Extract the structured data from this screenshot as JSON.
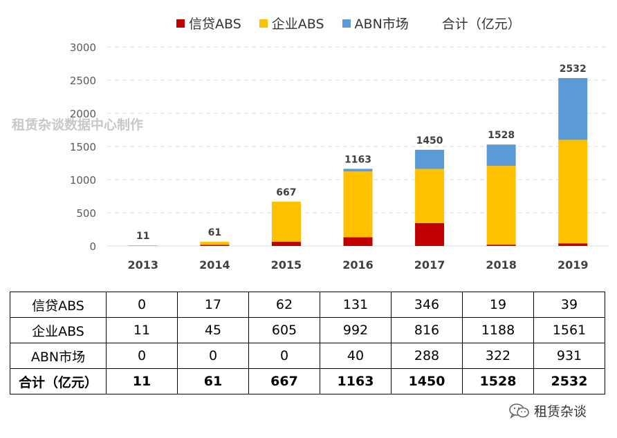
{
  "legend": {
    "items": [
      {
        "label": "信贷ABS",
        "color": "#c00000"
      },
      {
        "label": "企业ABS",
        "color": "#ffc000"
      },
      {
        "label": "ABN市场",
        "color": "#5b9bd5"
      }
    ],
    "total_label": "合计（亿元）"
  },
  "watermark": "租赁杂谈数据中心制作",
  "brand": {
    "icon": "wechat-icon",
    "text": "租赁杂谈"
  },
  "chart_data": {
    "type": "bar",
    "stacked": true,
    "categories": [
      "2013",
      "2014",
      "2015",
      "2016",
      "2017",
      "2018",
      "2019"
    ],
    "series": [
      {
        "name": "信贷ABS",
        "values": [
          0,
          17,
          62,
          131,
          346,
          19,
          39
        ],
        "color": "#c00000"
      },
      {
        "name": "企业ABS",
        "values": [
          11,
          45,
          605,
          992,
          816,
          1188,
          1561
        ],
        "color": "#ffc000"
      },
      {
        "name": "ABN市场",
        "values": [
          0,
          0,
          0,
          40,
          288,
          322,
          931
        ],
        "color": "#5b9bd5"
      }
    ],
    "totals": [
      11,
      61,
      667,
      1163,
      1450,
      1528,
      2532
    ],
    "y_ticks": [
      "0",
      "500",
      "1000",
      "1500",
      "2000",
      "2500",
      "3000"
    ],
    "ylim": [
      0,
      3000
    ],
    "grid": "dashed horizontal",
    "legend_position": "top"
  },
  "table": {
    "rows": [
      {
        "label": "信贷ABS",
        "values": [
          "0",
          "17",
          "62",
          "131",
          "346",
          "19",
          "39"
        ]
      },
      {
        "label": "企业ABS",
        "values": [
          "11",
          "45",
          "605",
          "992",
          "816",
          "1188",
          "1561"
        ]
      },
      {
        "label": "ABN市场",
        "values": [
          "0",
          "0",
          "0",
          "40",
          "288",
          "322",
          "931"
        ]
      },
      {
        "label": "合计（亿元）",
        "values": [
          "11",
          "61",
          "667",
          "1163",
          "1450",
          "1528",
          "2532"
        ]
      }
    ]
  }
}
